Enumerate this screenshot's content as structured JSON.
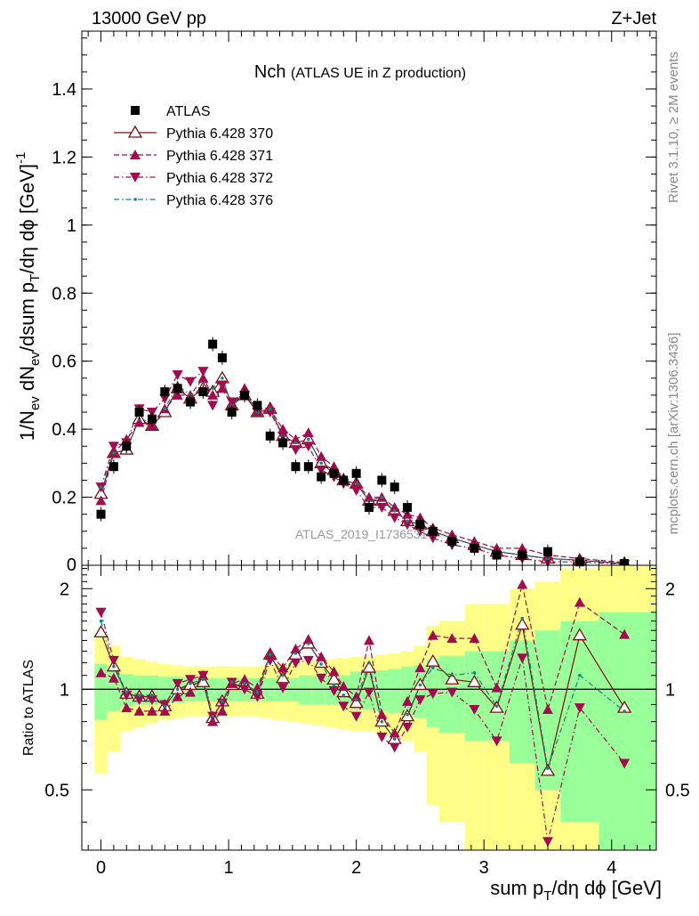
{
  "header": {
    "left": "13000 GeV pp",
    "right": "Z+Jet",
    "title_main": "Nch",
    "title_sub": "(ATLAS UE in Z production)",
    "watermark": "ATLAS_2019_I1736531",
    "side_top": "Rivet 3.1.10, ≥ 2M events",
    "side_bottom": "mcplots.cern.ch [arXiv:1306.3436]"
  },
  "axes": {
    "ylabel_main": "1/N_ev dN_ev/dsum p_T/dη dϕ [GeV]^-1",
    "ylabel_ratio": "Ratio to ATLAS",
    "xlabel": "sum p_T/dη dϕ [GeV]"
  },
  "chart_data": {
    "type": "scatter",
    "x": [
      0,
      0.1,
      0.2,
      0.3,
      0.4,
      0.5,
      0.6,
      0.7,
      0.8,
      0.875,
      0.95,
      1.025,
      1.125,
      1.225,
      1.325,
      1.425,
      1.525,
      1.625,
      1.725,
      1.825,
      1.9,
      2.0,
      2.1,
      2.2,
      2.3,
      2.4,
      2.5,
      2.6,
      2.75,
      2.925,
      3.1,
      3.3,
      3.5,
      3.75,
      4.1
    ],
    "xlim": [
      -0.15,
      4.35
    ],
    "ylim_main": [
      0,
      1.57
    ],
    "ylim_ratio": [
      0.33,
      2.35
    ],
    "yticks_main": [
      0.2,
      0.4,
      0.6,
      0.8,
      1,
      1.2,
      1.4
    ],
    "yticks_ratio": [
      0.5,
      1,
      2
    ],
    "xticks": [
      0,
      1,
      2,
      3,
      4
    ],
    "legend_position": "top-left",
    "series": [
      {
        "name": "ATLAS",
        "color": "#000000",
        "marker": "square",
        "line": "none",
        "values": [
          0.15,
          0.29,
          0.35,
          0.45,
          0.43,
          0.51,
          0.52,
          0.48,
          0.51,
          0.65,
          0.61,
          0.45,
          0.5,
          0.47,
          0.38,
          0.36,
          0.29,
          0.29,
          0.26,
          0.27,
          0.25,
          0.27,
          0.17,
          0.25,
          0.23,
          0.17,
          0.12,
          0.1,
          0.07,
          0.05,
          0.03,
          0.03,
          0.04,
          0.01,
          0.005
        ]
      },
      {
        "name": "Pythia 6.428 370",
        "color": "#7b1016",
        "marker": "triangle-open",
        "line": "solid",
        "values": [
          0.21,
          0.33,
          0.34,
          0.43,
          0.41,
          0.45,
          0.52,
          0.49,
          0.52,
          0.51,
          0.55,
          0.47,
          0.5,
          0.45,
          0.46,
          0.38,
          0.36,
          0.37,
          0.3,
          0.28,
          0.25,
          0.24,
          0.19,
          0.19,
          0.16,
          0.13,
          0.12,
          0.1,
          0.08,
          0.06,
          0.04,
          0.03,
          0.02,
          0.015,
          0.005
        ]
      },
      {
        "name": "Pythia 6.428 371",
        "color": "#a00c4e",
        "marker": "triangle-up",
        "line": "dashed",
        "values": [
          0.19,
          0.33,
          0.37,
          0.42,
          0.41,
          0.46,
          0.5,
          0.5,
          0.55,
          0.5,
          0.52,
          0.47,
          0.52,
          0.45,
          0.46,
          0.4,
          0.37,
          0.39,
          0.32,
          0.29,
          0.25,
          0.24,
          0.2,
          0.2,
          0.17,
          0.15,
          0.14,
          0.11,
          0.09,
          0.07,
          0.05,
          0.05,
          0.03,
          0.02,
          0.008
        ]
      },
      {
        "name": "Pythia 6.428 372",
        "color": "#a00c4e",
        "marker": "triangle-down",
        "line": "dashdot",
        "values": [
          0.23,
          0.35,
          0.36,
          0.46,
          0.45,
          0.49,
          0.56,
          0.54,
          0.57,
          0.47,
          0.53,
          0.48,
          0.5,
          0.45,
          0.45,
          0.38,
          0.34,
          0.35,
          0.28,
          0.26,
          0.24,
          0.22,
          0.17,
          0.17,
          0.14,
          0.12,
          0.1,
          0.08,
          0.06,
          0.05,
          0.03,
          0.02,
          0.01,
          0.01,
          0.003
        ]
      },
      {
        "name": "Pythia 6.428 376",
        "color": "#0f8a73",
        "marker": "dot",
        "line": "dashdot",
        "values": [
          0.23,
          0.33,
          0.34,
          0.43,
          0.42,
          0.46,
          0.53,
          0.5,
          0.52,
          0.52,
          0.55,
          0.47,
          0.51,
          0.45,
          0.46,
          0.38,
          0.36,
          0.37,
          0.3,
          0.27,
          0.25,
          0.24,
          0.19,
          0.2,
          0.16,
          0.13,
          0.12,
          0.1,
          0.08,
          0.06,
          0.04,
          0.03,
          0.02,
          0.015,
          0.005
        ]
      }
    ],
    "ratio_series": [
      {
        "name": "Pythia 6.428 370",
        "values": [
          1.48,
          1.17,
          0.97,
          0.95,
          0.95,
          0.89,
          1.0,
          1.03,
          1.05,
          0.82,
          0.92,
          1.03,
          1.03,
          0.97,
          1.27,
          1.08,
          1.27,
          1.37,
          1.2,
          1.07,
          0.98,
          0.91,
          1.16,
          0.8,
          0.71,
          0.83,
          1.03,
          1.21,
          1.07,
          1.05,
          0.88,
          1.56,
          0.57,
          1.45,
          0.88
        ]
      },
      {
        "name": "Pythia 6.428 371",
        "values": [
          1.12,
          1.08,
          0.88,
          0.86,
          0.86,
          0.86,
          0.95,
          0.98,
          1.1,
          0.8,
          0.86,
          1.04,
          1.07,
          1.01,
          1.27,
          1.16,
          1.32,
          1.41,
          1.25,
          1.13,
          1.02,
          0.95,
          1.4,
          0.84,
          0.74,
          0.92,
          1.16,
          1.45,
          1.42,
          1.42,
          1.01,
          2.06,
          0.87,
          1.82,
          1.46
        ]
      },
      {
        "name": "Pythia 6.428 372",
        "values": [
          1.7,
          1.22,
          0.96,
          0.93,
          0.93,
          0.9,
          1.04,
          1.07,
          1.1,
          0.83,
          0.91,
          1.05,
          1.0,
          0.95,
          1.22,
          1.01,
          1.2,
          1.22,
          1.08,
          0.99,
          0.89,
          0.83,
          0.98,
          0.72,
          0.67,
          0.77,
          0.93,
          0.97,
          0.98,
          0.87,
          0.7,
          1.24,
          0.35,
          0.88,
          0.6
        ]
      },
      {
        "name": "Pythia 6.428 376",
        "values": [
          1.6,
          1.17,
          0.98,
          0.96,
          0.96,
          0.89,
          1.0,
          1.04,
          1.07,
          0.83,
          0.92,
          1.05,
          1.04,
          0.98,
          1.27,
          1.1,
          1.28,
          1.37,
          1.19,
          1.03,
          0.96,
          0.93,
          1.2,
          0.8,
          0.71,
          0.84,
          1.03,
          1.16,
          1.1,
          1.12,
          0.89,
          1.63,
          0.58,
          1.1,
          0.86
        ]
      }
    ],
    "uncertainty_bands": {
      "edges": [
        -0.05,
        0.05,
        0.15,
        0.25,
        0.35,
        0.45,
        0.55,
        0.65,
        0.75,
        0.85,
        0.95,
        1.05,
        1.15,
        1.25,
        1.35,
        1.45,
        1.55,
        1.65,
        1.75,
        1.85,
        1.95,
        2.05,
        2.15,
        2.25,
        2.35,
        2.45,
        2.55,
        2.65,
        2.85,
        3.0,
        3.2,
        3.4,
        3.6,
        3.9,
        4.35
      ],
      "stat_rel": [
        0.19,
        0.14,
        0.11,
        0.1,
        0.1,
        0.09,
        0.09,
        0.08,
        0.08,
        0.08,
        0.08,
        0.08,
        0.08,
        0.08,
        0.08,
        0.08,
        0.1,
        0.1,
        0.1,
        0.1,
        0.13,
        0.13,
        0.14,
        0.15,
        0.17,
        0.18,
        0.23,
        0.26,
        0.3,
        0.3,
        0.4,
        0.5,
        0.6,
        0.7,
        0.9
      ],
      "total_rel": [
        0.44,
        0.35,
        0.25,
        0.23,
        0.21,
        0.19,
        0.18,
        0.17,
        0.17,
        0.17,
        0.17,
        0.17,
        0.17,
        0.18,
        0.19,
        0.2,
        0.21,
        0.22,
        0.23,
        0.24,
        0.25,
        0.25,
        0.27,
        0.28,
        0.3,
        0.35,
        0.55,
        0.6,
        0.8,
        0.8,
        1.0,
        1.1,
        1.3,
        1.4,
        1.6
      ]
    }
  }
}
